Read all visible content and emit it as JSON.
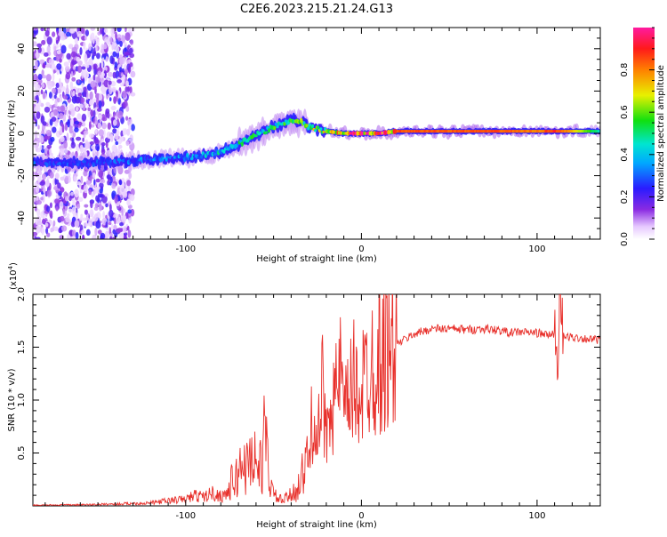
{
  "title": "C2E6.2023.215.21.24.G13",
  "chart_data": [
    {
      "type": "heatmap",
      "title": "",
      "xlabel": "Height of straight line (km)",
      "ylabel": "Frequency (Hz)",
      "xlim": [
        -187,
        136
      ],
      "ylim": [
        -50,
        50
      ],
      "xticks": [
        -100,
        0,
        100
      ],
      "yticks": [
        -40,
        -20,
        0,
        20,
        40
      ],
      "colorbar": {
        "label": "Normalized spectral amplitude",
        "range": [
          0,
          1
        ],
        "ticks": [
          0.0,
          0.2,
          0.4,
          0.6,
          0.8
        ],
        "colormap": "rainbow (white-violet-blue-cyan-green-yellow-red-magenta)"
      },
      "ridge": {
        "description": "Doppler ridge: frequency of peak spectral amplitude vs height",
        "x": [
          -187,
          -170,
          -150,
          -130,
          -110,
          -95,
          -80,
          -70,
          -60,
          -50,
          -40,
          -35,
          -30,
          -20,
          -10,
          0,
          10,
          20,
          40,
          60,
          80,
          100,
          110,
          120,
          136
        ],
        "freq": [
          -14,
          -14,
          -14,
          -13,
          -12,
          -11,
          -9,
          -5,
          -1,
          3,
          6,
          6,
          3,
          1,
          0,
          0,
          0,
          1,
          1,
          1,
          1,
          1,
          1,
          1,
          1
        ],
        "amplitude": [
          0.25,
          0.25,
          0.25,
          0.3,
          0.3,
          0.35,
          0.4,
          0.45,
          0.45,
          0.5,
          0.5,
          0.5,
          0.55,
          0.6,
          0.75,
          0.85,
          0.85,
          0.85,
          0.85,
          0.85,
          0.85,
          0.8,
          0.9,
          0.75,
          0.45
        ]
      },
      "noise_region": {
        "x_range": [
          -187,
          -130
        ],
        "freq_range": [
          -50,
          50
        ]
      }
    },
    {
      "type": "line",
      "title": "",
      "xlabel": "Height of straight line (km)",
      "ylabel": "SNR (10 * v/v)",
      "y_multiplier": "(x10",
      "y_multiplier_exp": "4",
      "y_multiplier_close": ")",
      "xlim": [
        -187,
        136
      ],
      "ylim": [
        0,
        20000
      ],
      "xticks": [
        -100,
        0,
        100
      ],
      "yticks": [
        5000,
        10000,
        15000,
        20000
      ],
      "ytick_labels": [
        "0.5",
        "1.0",
        "1.5",
        "2.0"
      ],
      "color": "#e8302b",
      "series": [
        {
          "x": [
            -187,
            -160,
            -140,
            -120,
            -110,
            -100,
            -95,
            -90,
            -85,
            -80,
            -75,
            -70,
            -68,
            -65,
            -62,
            -60,
            -58,
            -55,
            -52,
            -50,
            -45,
            -40,
            -35,
            -30,
            -27,
            -25,
            -22,
            -20,
            -18,
            -15,
            -12,
            -10,
            -5,
            0,
            5,
            10,
            15,
            20,
            25,
            30,
            40,
            50,
            60,
            70,
            80,
            85,
            90,
            100,
            105,
            110,
            112,
            113,
            115,
            120,
            130,
            136
          ],
          "y": [
            100,
            150,
            250,
            400,
            700,
            900,
            1400,
            1200,
            1700,
            1300,
            2000,
            2800,
            4500,
            3500,
            5500,
            4000,
            3200,
            6500,
            2500,
            1000,
            500,
            1000,
            2200,
            4500,
            10000,
            5500,
            11000,
            6000,
            12000,
            9500,
            13000,
            8000,
            11500,
            11000,
            13500,
            14000,
            14500,
            15500,
            16000,
            16500,
            17000,
            17000,
            16900,
            17000,
            16800,
            16600,
            16700,
            16600,
            16400,
            16500,
            12500,
            20000,
            16200,
            16200,
            16000,
            15900
          ]
        }
      ]
    }
  ]
}
